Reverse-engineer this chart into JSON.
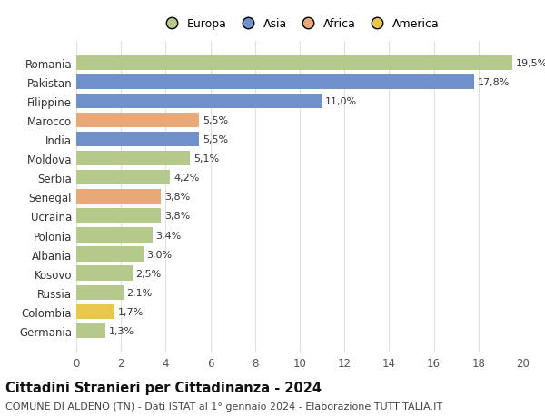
{
  "categories": [
    "Germania",
    "Colombia",
    "Russia",
    "Kosovo",
    "Albania",
    "Polonia",
    "Ucraina",
    "Senegal",
    "Serbia",
    "Moldova",
    "India",
    "Marocco",
    "Filippine",
    "Pakistan",
    "Romania"
  ],
  "values": [
    1.3,
    1.7,
    2.1,
    2.5,
    3.0,
    3.4,
    3.8,
    3.8,
    4.2,
    5.1,
    5.5,
    5.5,
    11.0,
    17.8,
    19.5
  ],
  "labels": [
    "1,3%",
    "1,7%",
    "2,1%",
    "2,5%",
    "3,0%",
    "3,4%",
    "3,8%",
    "3,8%",
    "4,2%",
    "5,1%",
    "5,5%",
    "5,5%",
    "11,0%",
    "17,8%",
    "19,5%"
  ],
  "colors": [
    "#b5c98a",
    "#e8c84a",
    "#b5c98a",
    "#b5c98a",
    "#b5c98a",
    "#b5c98a",
    "#b5c98a",
    "#e8a878",
    "#b5c98a",
    "#b5c98a",
    "#7090cc",
    "#e8a878",
    "#7090cc",
    "#7090cc",
    "#b5c98a"
  ],
  "legend": {
    "Europa": "#b5c98a",
    "Asia": "#7090cc",
    "Africa": "#e8a878",
    "America": "#e8c84a"
  },
  "title": "Cittadini Stranieri per Cittadinanza - 2024",
  "subtitle": "COMUNE DI ALDENO (TN) - Dati ISTAT al 1° gennaio 2024 - Elaborazione TUTTITALIA.IT",
  "xlim": [
    0,
    20
  ],
  "xticks": [
    0,
    2,
    4,
    6,
    8,
    10,
    12,
    14,
    16,
    18,
    20
  ],
  "background_color": "#ffffff",
  "grid_color": "#e0e0e0",
  "bar_height": 0.78,
  "title_fontsize": 10.5,
  "subtitle_fontsize": 8,
  "tick_fontsize": 8.5,
  "label_fontsize": 8
}
